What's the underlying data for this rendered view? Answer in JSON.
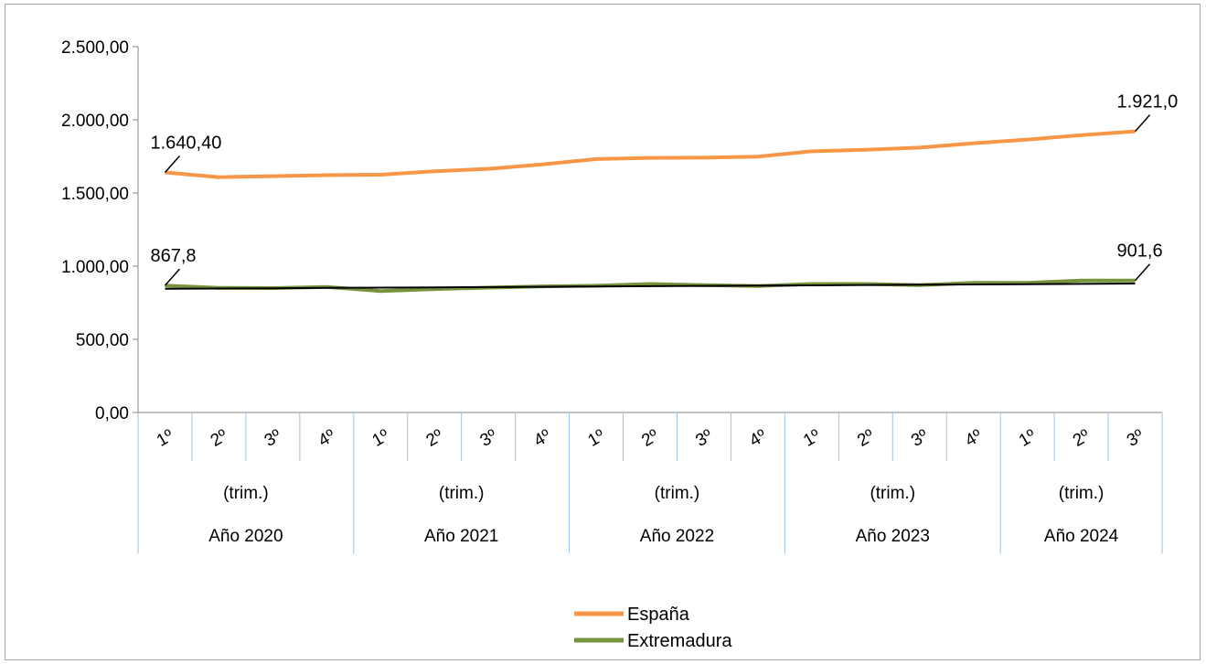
{
  "chart_data": {
    "type": "line",
    "title": "",
    "xlabel": "",
    "ylabel": "",
    "ylim": [
      0,
      2500
    ],
    "y_ticks": [
      "0,00",
      "500,00",
      "1.000,00",
      "1.500,00",
      "2.000,00",
      "2.500,00"
    ],
    "y_tick_values": [
      0,
      500,
      1000,
      1500,
      2000,
      2500
    ],
    "categories": [
      "1º",
      "2º",
      "3º",
      "4º",
      "1º",
      "2º",
      "3º",
      "4º",
      "1º",
      "2º",
      "3º",
      "4º",
      "1º",
      "2º",
      "3º",
      "4º",
      "1º",
      "2º",
      "3º"
    ],
    "category_groups": [
      {
        "sub_label": "(trim.)",
        "label": "Año 2020",
        "count": 4
      },
      {
        "sub_label": "(trim.)",
        "label": "Año 2021",
        "count": 4
      },
      {
        "sub_label": "(trim.)",
        "label": "Año 2022",
        "count": 4
      },
      {
        "sub_label": "(trim.)",
        "label": "Año 2023",
        "count": 4
      },
      {
        "sub_label": "(trim.)",
        "label": "Año 2024",
        "count": 3
      }
    ],
    "series": [
      {
        "name": "España",
        "color": "#f79646",
        "values": [
          1640.4,
          1608,
          1615,
          1622,
          1625,
          1648,
          1665,
          1695,
          1732,
          1740,
          1741,
          1748,
          1785,
          1795,
          1810,
          1840,
          1865,
          1895,
          1921.0
        ],
        "labels": [
          {
            "index": 0,
            "text": "1.640,40"
          },
          {
            "index": 18,
            "text": "1.921,0"
          }
        ]
      },
      {
        "name": "Extremadura",
        "color": "#77933c",
        "values": [
          867.8,
          852,
          850,
          858,
          830,
          843,
          853,
          862,
          866,
          878,
          870,
          864,
          878,
          878,
          870,
          886,
          886,
          902,
          901.6
        ],
        "labels": [
          {
            "index": 0,
            "text": "867,8"
          },
          {
            "index": 18,
            "text": "901,6"
          }
        ]
      }
    ],
    "trendline": {
      "series": "Extremadura",
      "color": "#000000",
      "values": [
        845,
        847,
        849,
        851,
        853,
        855,
        857,
        859,
        861,
        863,
        865,
        867,
        869,
        871,
        873,
        875,
        877,
        879,
        881
      ]
    },
    "grid": false,
    "legend": "bottom-center"
  }
}
